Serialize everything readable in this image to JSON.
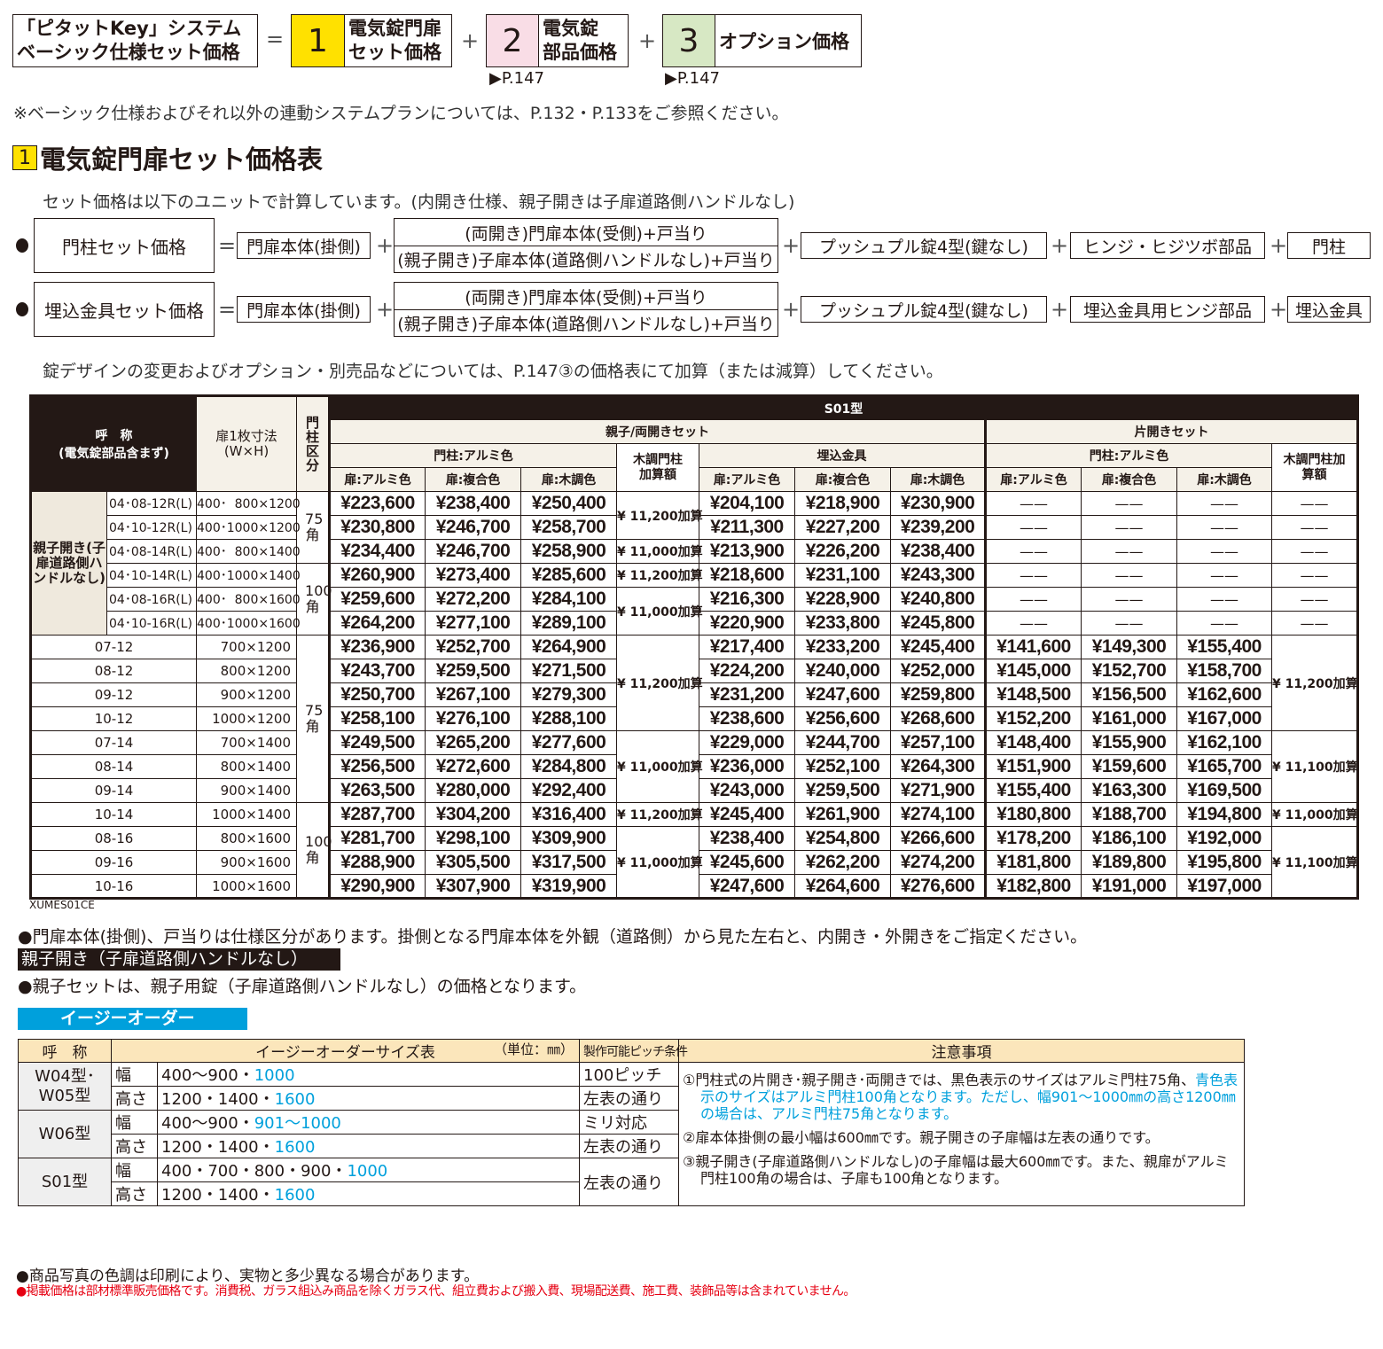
{
  "formula": {
    "total": [
      "「ピタットKey」システム",
      "ベーシック仕様セット価格"
    ],
    "eq": "=",
    "plus": "+",
    "items": [
      {
        "num": "1",
        "lines": [
          "電気錠門扉",
          "セット価格"
        ],
        "color": "#ffe100",
        "ref": ""
      },
      {
        "num": "2",
        "lines": [
          "電気錠",
          "部品価格"
        ],
        "color": "#f9dde6",
        "ref": "P.147"
      },
      {
        "num": "3",
        "lines": [
          "オプション価格"
        ],
        "color": "#d7e8c4",
        "ref": "P.147"
      }
    ]
  },
  "note_top": "※ベーシック仕様およびそれ以外の連動システムプランについては、P.132・P.133をご参照ください。",
  "section": {
    "num": "1",
    "title": "電気錠門扉セット価格表"
  },
  "calc_intro": "セット価格は以下のユニットで計算しています。(内開き仕様、親子開きは子扉道路側ハンドルなし)",
  "calc_rows": [
    {
      "label": "門柱セット価格",
      "a": "門扉本体(掛側)",
      "b1": "(両開き)門扉本体(受側)+戸当り",
      "b2": "(親子開き)子扉本体(道路側ハンドルなし)+戸当り",
      "c": "プッシュプル錠4型(鍵なし)",
      "d": "ヒンジ・ヒジツボ部品",
      "e": "門柱"
    },
    {
      "label": "埋込金具セット価格",
      "a": "門扉本体(掛側)",
      "b1": "(両開き)門扉本体(受側)+戸当り",
      "b2": "(親子開き)子扉本体(道路側ハンドルなし)+戸当り",
      "c": "プッシュプル錠4型(鍵なし)",
      "d": "埋込金具用ヒンジ部品",
      "e": "埋込金具"
    }
  ],
  "calc_note": "錠デザインの変更およびオプション・別売品などについては、P.147③の価格表にて加算（または減算）してください。",
  "price_table": {
    "headers": {
      "name": "呼　称",
      "name_sub": "(電気錠部品含まず)",
      "size": "扉1枚寸法",
      "size_sub": "(W×H)",
      "pillar": "門柱区分",
      "model": "S01型",
      "double_set": "親子/両開きセット",
      "single_set": "片開きセット",
      "alu_pillar": "門柱:アルミ色",
      "embed": "埋込金具",
      "wood_add": "木調門柱加算額",
      "door_alu": "扉:アルミ色",
      "door_comp": "扉:複合色",
      "door_wood": "扉:木調色"
    },
    "group_label": "親子開き(子扉道路側ハンドルなし)",
    "rows": [
      {
        "code": "04･08-12R(L)",
        "size": "400･  800×1200",
        "pr": [
          "¥223,600",
          "¥238,400",
          "¥250,400",
          "¥204,100",
          "¥218,900",
          "¥230,900"
        ],
        "single": null
      },
      {
        "code": "04･10-12R(L)",
        "size": "400･1000×1200",
        "pr": [
          "¥230,800",
          "¥246,700",
          "¥258,700",
          "¥211,300",
          "¥227,200",
          "¥239,200"
        ],
        "single": null
      },
      {
        "code": "04･08-14R(L)",
        "size": "400･  800×1400",
        "pr": [
          "¥234,400",
          "¥246,700",
          "¥258,900",
          "¥213,900",
          "¥226,200",
          "¥238,400"
        ],
        "single": null
      },
      {
        "code": "04･10-14R(L)",
        "size": "400･1000×1400",
        "pr": [
          "¥260,900",
          "¥273,400",
          "¥285,600",
          "¥218,600",
          "¥231,100",
          "¥243,300"
        ],
        "single": null
      },
      {
        "code": "04･08-16R(L)",
        "size": "400･  800×1600",
        "pr": [
          "¥259,600",
          "¥272,200",
          "¥284,100",
          "¥216,300",
          "¥228,900",
          "¥240,800"
        ],
        "single": null
      },
      {
        "code": "04･10-16R(L)",
        "size": "400･1000×1600",
        "pr": [
          "¥264,200",
          "¥277,100",
          "¥289,100",
          "¥220,900",
          "¥233,800",
          "¥245,800"
        ],
        "single": null
      },
      {
        "code": "07-12",
        "size": "700×1200",
        "pr": [
          "¥236,900",
          "¥252,700",
          "¥264,900",
          "¥217,400",
          "¥233,200",
          "¥245,400"
        ],
        "single": [
          "¥141,600",
          "¥149,300",
          "¥155,400"
        ]
      },
      {
        "code": "08-12",
        "size": "800×1200",
        "pr": [
          "¥243,700",
          "¥259,500",
          "¥271,500",
          "¥224,200",
          "¥240,000",
          "¥252,000"
        ],
        "single": [
          "¥145,000",
          "¥152,700",
          "¥158,700"
        ]
      },
      {
        "code": "09-12",
        "size": "900×1200",
        "pr": [
          "¥250,700",
          "¥267,100",
          "¥279,300",
          "¥231,200",
          "¥247,600",
          "¥259,800"
        ],
        "single": [
          "¥148,500",
          "¥156,500",
          "¥162,600"
        ]
      },
      {
        "code": "10-12",
        "size": "1000×1200",
        "pr": [
          "¥258,100",
          "¥276,100",
          "¥288,100",
          "¥238,600",
          "¥256,600",
          "¥268,600"
        ],
        "single": [
          "¥152,200",
          "¥161,000",
          "¥167,000"
        ]
      },
      {
        "code": "07-14",
        "size": "700×1400",
        "pr": [
          "¥249,500",
          "¥265,200",
          "¥277,600",
          "¥229,000",
          "¥244,700",
          "¥257,100"
        ],
        "single": [
          "¥148,400",
          "¥155,900",
          "¥162,100"
        ]
      },
      {
        "code": "08-14",
        "size": "800×1400",
        "pr": [
          "¥256,500",
          "¥272,600",
          "¥284,800",
          "¥236,000",
          "¥252,100",
          "¥264,300"
        ],
        "single": [
          "¥151,900",
          "¥159,600",
          "¥165,700"
        ]
      },
      {
        "code": "09-14",
        "size": "900×1400",
        "pr": [
          "¥263,500",
          "¥280,000",
          "¥292,400",
          "¥243,000",
          "¥259,500",
          "¥271,900"
        ],
        "single": [
          "¥155,400",
          "¥163,300",
          "¥169,500"
        ]
      },
      {
        "code": "10-14",
        "size": "1000×1400",
        "pr": [
          "¥287,700",
          "¥304,200",
          "¥316,400",
          "¥245,400",
          "¥261,900",
          "¥274,100"
        ],
        "single": [
          "¥180,800",
          "¥188,700",
          "¥194,800"
        ]
      },
      {
        "code": "08-16",
        "size": "800×1600",
        "pr": [
          "¥281,700",
          "¥298,100",
          "¥309,900",
          "¥238,400",
          "¥254,800",
          "¥266,600"
        ],
        "single": [
          "¥178,200",
          "¥186,100",
          "¥192,000"
        ]
      },
      {
        "code": "09-16",
        "size": "900×1600",
        "pr": [
          "¥288,900",
          "¥305,500",
          "¥317,500",
          "¥245,600",
          "¥262,200",
          "¥274,200"
        ],
        "single": [
          "¥181,800",
          "¥189,800",
          "¥195,800"
        ]
      },
      {
        "code": "10-16",
        "size": "1000×1600",
        "pr": [
          "¥290,900",
          "¥307,900",
          "¥319,900",
          "¥247,600",
          "¥264,600",
          "¥276,600"
        ],
        "single": [
          "¥182,800",
          "¥191,000",
          "¥197,000"
        ]
      }
    ],
    "pillar_groups": [
      {
        "span": 3,
        "text": "75角"
      },
      {
        "span": 3,
        "text": "100角"
      },
      {
        "span": 7,
        "text": "75角"
      },
      {
        "span": 4,
        "text": "100角"
      }
    ],
    "wood_double_groups": [
      {
        "span": 2,
        "text": "¥ 11,200加算"
      },
      {
        "span": 1,
        "text": "¥ 11,000加算"
      },
      {
        "span": 1,
        "text": "¥ 11,200加算"
      },
      {
        "span": 2,
        "text": "¥ 11,000加算"
      },
      {
        "span": 4,
        "text": "¥ 11,200加算"
      },
      {
        "span": 3,
        "text": "¥ 11,000加算"
      },
      {
        "span": 1,
        "text": "¥ 11,200加算"
      },
      {
        "span": 3,
        "text": "¥ 11,000加算"
      }
    ],
    "wood_single_groups": [
      {
        "span": 4,
        "text": "¥ 11,200加算"
      },
      {
        "span": 3,
        "text": "¥ 11,100加算"
      },
      {
        "span": 1,
        "text": "¥ 11,000加算"
      },
      {
        "span": 3,
        "text": "¥ 11,100加算"
      }
    ],
    "dash": "——",
    "code_label": "XUMES01CE"
  },
  "notes_mid": [
    "●門扉本体(掛側)、戸当りは仕様区分があります。掛側となる門扉本体を外観（道路側）から見た左右と、内開き・外開きをご指定ください。",
    "●親子セットは、親子用錠（子扉道路側ハンドルなし）の価格となります。"
  ],
  "oyako_banner": "親子開き（子扉道路側ハンドルなし）",
  "easy_order": {
    "label": "イージーオーダー",
    "headers": {
      "name": "呼　称",
      "size": "イージーオーダーサイズ表",
      "unit": "（単位：㎜）",
      "pitch": "製作可能ピッチ条件",
      "notes": "注意事項"
    },
    "w": "幅",
    "h": "高さ",
    "groups": [
      {
        "name": "W04型･\nW05型",
        "w": [
          "400～900・",
          "1000"
        ],
        "h": [
          "1200・1400・",
          "1600"
        ],
        "pw": "100ピッチ",
        "ph": "左表の通り"
      },
      {
        "name": "W06型",
        "w": [
          "400～900・",
          "901～1000"
        ],
        "h": [
          "1200・1400・",
          "1600"
        ],
        "pw": "ミリ対応",
        "ph": "左表の通り"
      },
      {
        "name": "S01型",
        "w": [
          "400・700・800・900・",
          "1000"
        ],
        "h": [
          "1200・1400・",
          "1600"
        ],
        "pw": "左表の通り",
        "ph": ""
      }
    ],
    "notes": [
      {
        "black": "①門柱式の片開き･親子開き･両開きでは、黒色表示のサイズはアルミ門柱75角、",
        "blue": "青色表示のサイズはアルミ門柱100角となります。ただし、幅901～1000㎜の高さ1200㎜の場合は、アルミ門柱75角となります。"
      },
      {
        "black": "②扉本体掛側の最小幅は600㎜です。親子開きの子扉幅は左表の通りです。",
        "blue": ""
      },
      {
        "black": "③親子開き(子扉道路側ハンドルなし)の子扉幅は最大600㎜です。また、親扉がアルミ門柱100角の場合は、子扉も100角となります。",
        "blue": ""
      }
    ]
  },
  "footer": [
    "●商品写真の色調は印刷により、実物と多少異なる場合があります。",
    "●掲載価格は部材標準販売価格です。消費税、ガラス組込み商品を除くガラス代、組立費および搬入費、現場配送費、施工費、装飾品等は含まれていません。"
  ],
  "colors": {
    "blue": "#00a0dc",
    "red": "#e60012",
    "yellow": "#ffe100",
    "dark": "#231815"
  }
}
